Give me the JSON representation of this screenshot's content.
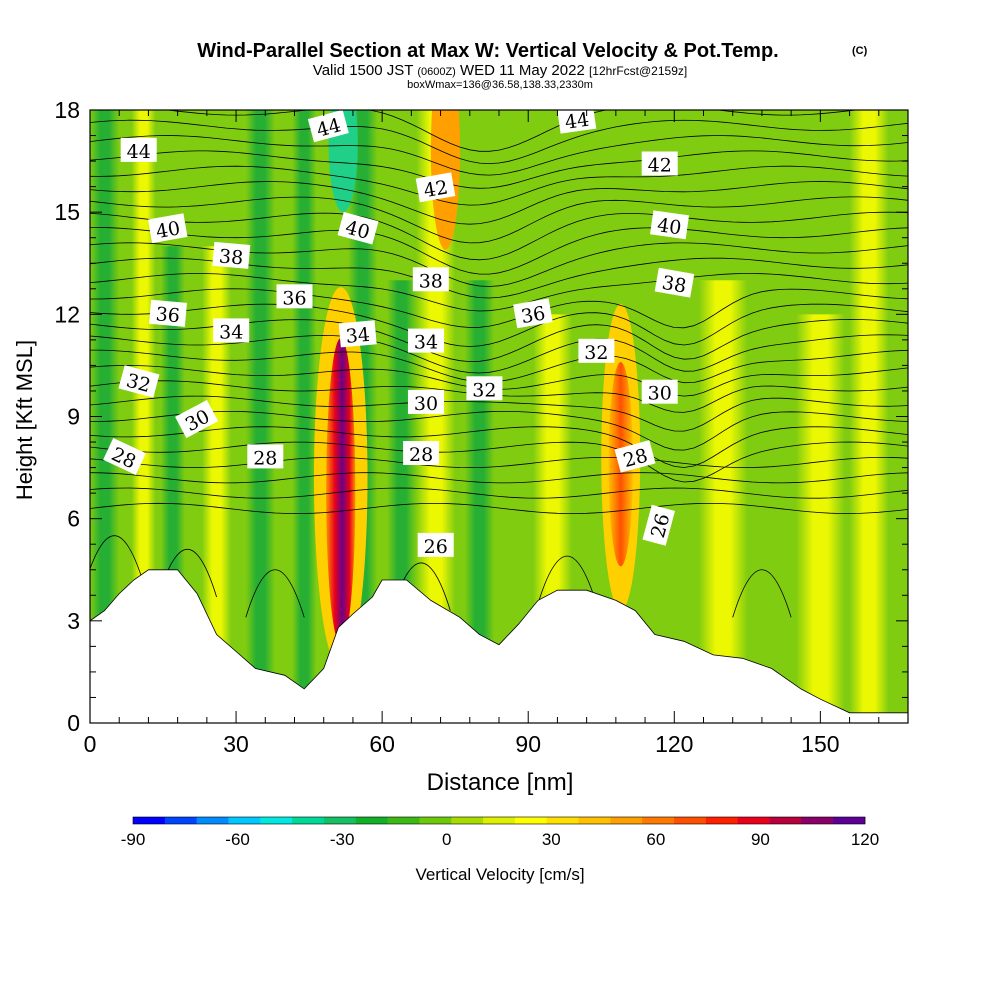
{
  "header": {
    "title": "Wind-Parallel Section at Max W: Vertical Velocity & Pot.Temp.",
    "copyright": "(C)",
    "valid_prefix": "Valid 1500 JST",
    "valid_utc": "(0600Z)",
    "valid_date": "WED 11 May 2022",
    "forecast": "[12hrFcst@2159z]",
    "box_info": "boxWmax=136@36.58,138.33,2330m"
  },
  "chart_data": {
    "type": "heatmap",
    "title": "Wind-Parallel Section at Max W: Vertical Velocity & Pot.Temp.",
    "xlabel": "Distance [nm]",
    "ylabel": "Height [Kft MSL]",
    "xlim": [
      0,
      168
    ],
    "ylim": [
      0,
      18
    ],
    "x_ticks": [
      "0",
      "30",
      "60",
      "90",
      "120",
      "150"
    ],
    "y_ticks": [
      "0",
      "3",
      "6",
      "9",
      "12",
      "15",
      "18"
    ],
    "colorbar": {
      "label": "Vertical Velocity [cm/s]",
      "range": [
        -90,
        120
      ],
      "tick_labels": [
        "-90",
        "-60",
        "-30",
        "0",
        "30",
        "60",
        "90",
        "120"
      ],
      "colors": [
        "#0000ff",
        "#0044ff",
        "#008cff",
        "#00c8ff",
        "#00e8e0",
        "#00d898",
        "#14c064",
        "#10b028",
        "#3cb814",
        "#6ec80a",
        "#a8dc00",
        "#dcf000",
        "#ffff00",
        "#ffe000",
        "#ffc000",
        "#ffa000",
        "#ff7800",
        "#ff5000",
        "#ff2000",
        "#e8001c",
        "#b8003c",
        "#880068",
        "#5a0096"
      ]
    },
    "terrain_kft": [
      [
        0,
        3.0
      ],
      [
        3,
        3.3
      ],
      [
        6,
        3.8
      ],
      [
        9,
        4.2
      ],
      [
        12,
        4.5
      ],
      [
        18,
        4.5
      ],
      [
        22,
        3.8
      ],
      [
        26,
        2.6
      ],
      [
        30,
        2.1
      ],
      [
        34,
        1.6
      ],
      [
        40,
        1.4
      ],
      [
        44,
        1.0
      ],
      [
        48,
        1.6
      ],
      [
        51,
        2.8
      ],
      [
        54,
        3.2
      ],
      [
        58,
        3.7
      ],
      [
        60,
        4.2
      ],
      [
        65,
        4.2
      ],
      [
        70,
        3.6
      ],
      [
        76,
        3.1
      ],
      [
        80,
        2.6
      ],
      [
        84,
        2.3
      ],
      [
        88,
        2.9
      ],
      [
        92,
        3.6
      ],
      [
        96,
        3.9
      ],
      [
        102,
        3.9
      ],
      [
        108,
        3.6
      ],
      [
        112,
        3.3
      ],
      [
        116,
        2.6
      ],
      [
        122,
        2.4
      ],
      [
        128,
        2.0
      ],
      [
        134,
        1.9
      ],
      [
        140,
        1.6
      ],
      [
        146,
        1.0
      ],
      [
        150,
        0.7
      ],
      [
        156,
        0.3
      ],
      [
        168,
        0.3
      ]
    ],
    "theta_contour_labels": [
      {
        "value": "44",
        "x": 10,
        "y": 16.8
      },
      {
        "value": "44",
        "x": 49,
        "y": 17.5
      },
      {
        "value": "44",
        "x": 100,
        "y": 17.7
      },
      {
        "value": "42",
        "x": 71,
        "y": 15.7
      },
      {
        "value": "42",
        "x": 117,
        "y": 16.4
      },
      {
        "value": "40",
        "x": 16,
        "y": 14.5
      },
      {
        "value": "40",
        "x": 55,
        "y": 14.5
      },
      {
        "value": "40",
        "x": 119,
        "y": 14.6
      },
      {
        "value": "38",
        "x": 29,
        "y": 13.7
      },
      {
        "value": "38",
        "x": 70,
        "y": 13.0
      },
      {
        "value": "38",
        "x": 120,
        "y": 12.9
      },
      {
        "value": "36",
        "x": 16,
        "y": 12.0
      },
      {
        "value": "36",
        "x": 42,
        "y": 12.5
      },
      {
        "value": "36",
        "x": 91,
        "y": 12.0
      },
      {
        "value": "34",
        "x": 29,
        "y": 11.5
      },
      {
        "value": "34",
        "x": 55,
        "y": 11.4
      },
      {
        "value": "34",
        "x": 69,
        "y": 11.2
      },
      {
        "value": "32",
        "x": 10,
        "y": 10.0
      },
      {
        "value": "32",
        "x": 81,
        "y": 9.8
      },
      {
        "value": "32",
        "x": 104,
        "y": 10.9
      },
      {
        "value": "30",
        "x": 22,
        "y": 8.9
      },
      {
        "value": "30",
        "x": 69,
        "y": 9.4
      },
      {
        "value": "30",
        "x": 117,
        "y": 9.7
      },
      {
        "value": "28",
        "x": 7,
        "y": 7.8
      },
      {
        "value": "28",
        "x": 36,
        "y": 7.8
      },
      {
        "value": "28",
        "x": 68,
        "y": 7.9
      },
      {
        "value": "28",
        "x": 112,
        "y": 7.8
      },
      {
        "value": "26",
        "x": 71,
        "y": 5.2
      },
      {
        "value": "26",
        "x": 117,
        "y": 5.8
      }
    ]
  }
}
